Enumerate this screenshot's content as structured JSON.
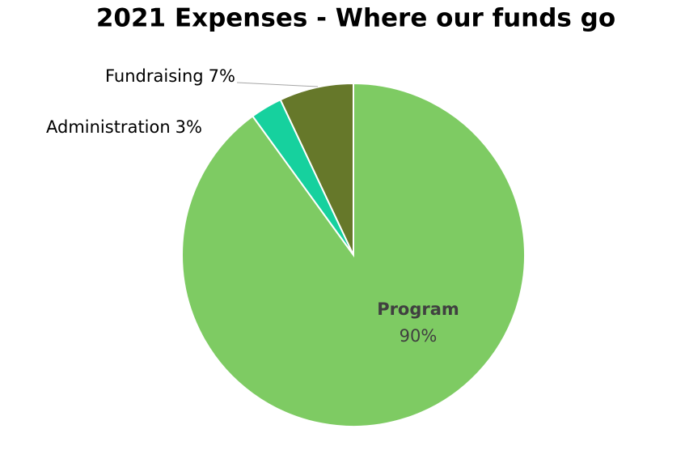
{
  "chart_data": {
    "type": "pie",
    "title": "2021 Expenses - Where our funds go",
    "categories": [
      "Program",
      "Administration",
      "Fundraising"
    ],
    "values": [
      90,
      3,
      7
    ],
    "value_labels": [
      "90%",
      "3%",
      "7%"
    ],
    "colors": [
      "#7ecb63",
      "#16d19e",
      "#66782a"
    ]
  }
}
